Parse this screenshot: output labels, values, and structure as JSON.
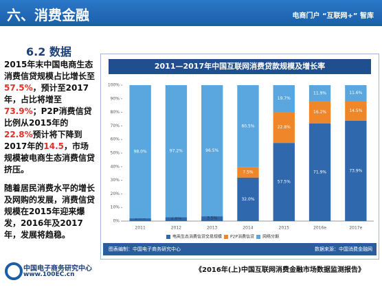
{
  "header": {
    "title": "六、消费金融",
    "right": "电商门户 “互联网+” 智库"
  },
  "section": "6.2 数据",
  "text": {
    "paragraphs": [
      [
        "2015年末中国电商生态消费信贷规模占比增长至",
        "57.5%",
        "，预计至2017年，占比将增至",
        "73.9%",
        "；P2P消费信贷比例从2015年的",
        "22.8%",
        "预计将下降到2017年的",
        "14.5",
        "，市场规模被电商生态消费信贷挤压。"
      ],
      [
        "随着居民消费水平的增长及网购的发展，消费信贷规模在2015年迎来爆发，2016年及2017年，发展将趋稳。"
      ]
    ]
  },
  "chart_data": {
    "type": "stacked_bar",
    "title": "2011—2017年中国互联网消费贷款规模及增长率",
    "categories": [
      "2011",
      "2012",
      "2013",
      "2014",
      "2015",
      "2016e",
      "2017e"
    ],
    "series": [
      {
        "name": "电商生态消费信贷交易规模",
        "color": "#2f68ad",
        "values": [
          2.0,
          2.8,
          3.5,
          32.0,
          57.5,
          71.9,
          73.9
        ],
        "value_labels": [
          "2.0%",
          "2.8%",
          "3.5%",
          "32.0%",
          "57.5%",
          "71.9%",
          "73.9%"
        ]
      },
      {
        "name": "P2P消费信贷",
        "color": "#f0862a",
        "values": [
          0,
          0,
          0,
          7.5,
          22.8,
          16.2,
          14.5
        ],
        "value_labels": [
          null,
          null,
          null,
          "7.5%",
          "22.8%",
          "16.2%",
          "14.5%"
        ]
      },
      {
        "name": "网络分期",
        "color": "#5aa6de",
        "values": [
          98.0,
          97.2,
          96.5,
          60.5,
          19.7,
          11.9,
          11.6
        ],
        "value_labels": [
          "98.0%",
          "97.2%",
          "96.5%",
          "60.5%",
          "19.7%",
          "11.9%",
          "11.6%"
        ]
      }
    ],
    "ylim": [
      0,
      100
    ],
    "yticks": [
      {
        "value": 0,
        "label": "0%"
      },
      {
        "value": 10,
        "label": "10%"
      },
      {
        "value": 20,
        "label": "20%"
      },
      {
        "value": 30,
        "label": "30%"
      },
      {
        "value": 40,
        "label": "40%"
      },
      {
        "value": 50,
        "label": "50%"
      },
      {
        "value": 60,
        "label": "60%"
      },
      {
        "value": 70,
        "label": "70%"
      },
      {
        "value": 80,
        "label": "80%"
      },
      {
        "value": 90,
        "label": "90%"
      },
      {
        "value": 100,
        "label": "100%"
      }
    ],
    "source_left": "图表编制：中国电子商务研究中心",
    "source_right": "数据来源：中国消费金融网"
  },
  "footer": {
    "org": "中国电子商务研究中心",
    "url": "www.100EC.cn",
    "report": "《2016年(上)中国互联网消费金融市场数据监测报告》"
  }
}
